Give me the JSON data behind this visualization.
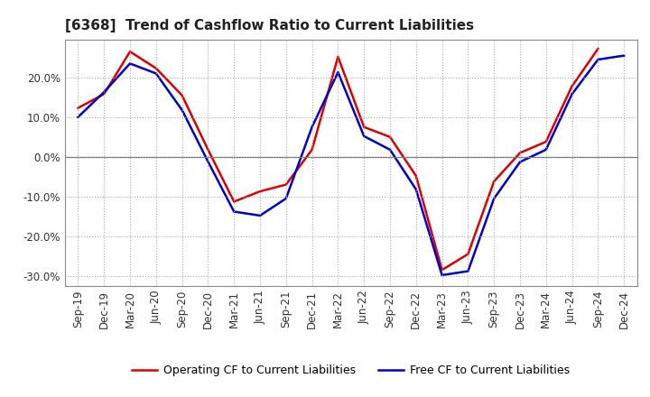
{
  "title": "[6368]  Trend of Cashflow Ratio to Current Liabilities",
  "x_labels": [
    "Sep-19",
    "Dec-19",
    "Mar-20",
    "Jun-20",
    "Sep-20",
    "Dec-20",
    "Mar-21",
    "Jun-21",
    "Sep-21",
    "Dec-21",
    "Mar-22",
    "Jun-22",
    "Sep-22",
    "Dec-22",
    "Mar-23",
    "Jun-23",
    "Sep-23",
    "Dec-23",
    "Mar-24",
    "Jun-24",
    "Sep-24",
    "Dec-24"
  ],
  "operating_cf": [
    0.123,
    0.158,
    0.265,
    0.223,
    0.155,
    0.018,
    -0.113,
    -0.087,
    -0.07,
    0.018,
    0.252,
    0.075,
    0.05,
    -0.048,
    -0.285,
    -0.245,
    -0.062,
    0.01,
    0.038,
    0.178,
    0.272,
    null
  ],
  "free_cf": [
    0.1,
    0.163,
    0.235,
    0.21,
    0.118,
    -0.012,
    -0.138,
    -0.148,
    -0.105,
    0.075,
    0.213,
    0.052,
    0.018,
    -0.082,
    -0.298,
    -0.288,
    -0.105,
    -0.013,
    0.018,
    0.158,
    0.245,
    0.255
  ],
  "operating_color": "#dd0000",
  "free_color": "#0000cc",
  "ylim": [
    -0.325,
    0.295
  ],
  "yticks": [
    -0.3,
    -0.2,
    -0.1,
    0.0,
    0.1,
    0.2
  ],
  "background_color": "#ffffff",
  "grid_color": "#aaaaaa",
  "zero_line_color": "#666666",
  "legend_op": "Operating CF to Current Liabilities",
  "legend_free": "Free CF to Current Liabilities",
  "title_fontsize": 11,
  "tick_fontsize": 8.5
}
